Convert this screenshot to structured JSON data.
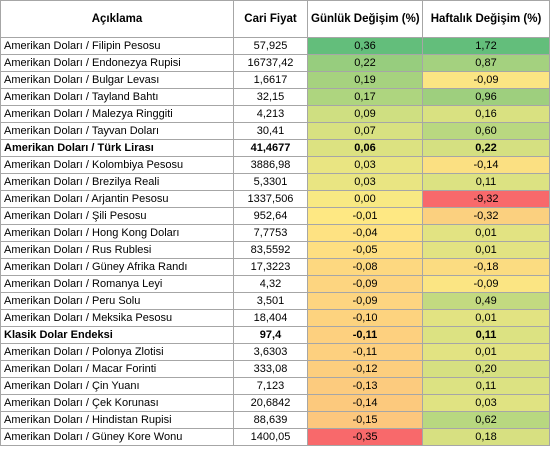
{
  "headers": [
    "Açıklama",
    "Cari Fiyat",
    "Günlük Değişim (%)",
    "Haftalık Değişim (%)"
  ],
  "rows": [
    {
      "name": "Amerikan Doları / Filipin Pesosu",
      "price": "57,925",
      "daily": "0,36",
      "weekly": "1,72",
      "daily_color": "#63be7b",
      "weekly_color": "#63be7b",
      "bold": false
    },
    {
      "name": "Amerikan Doları / Endonezya Rupisi",
      "price": "16737,42",
      "daily": "0,22",
      "weekly": "0,87",
      "daily_color": "#97cd7e",
      "weekly_color": "#a4d17f",
      "bold": false
    },
    {
      "name": "Amerikan Doları / Bulgar Levası",
      "price": "1,6617",
      "daily": "0,19",
      "weekly": "-0,09",
      "daily_color": "#a6d27f",
      "weekly_color": "#fbe583",
      "bold": false
    },
    {
      "name": "Amerikan Doları / Tayland Bahtı",
      "price": "32,15",
      "daily": "0,17",
      "weekly": "0,96",
      "daily_color": "#aed57f",
      "weekly_color": "#9ecf7e",
      "bold": false
    },
    {
      "name": "Amerikan Doları / Malezya Ringgiti",
      "price": "4,213",
      "daily": "0,09",
      "weekly": "0,16",
      "daily_color": "#cfdf81",
      "weekly_color": "#d9e181",
      "bold": false
    },
    {
      "name": "Amerikan Doları /  Tayvan Doları",
      "price": "30,41",
      "daily": "0,07",
      "weekly": "0,60",
      "daily_color": "#d8e181",
      "weekly_color": "#b9d880",
      "bold": false
    },
    {
      "name": "Amerikan Doları / Türk Lirası",
      "price": "41,4677",
      "daily": "0,06",
      "weekly": "0,22",
      "daily_color": "#dce281",
      "weekly_color": "#d5e081",
      "bold": true
    },
    {
      "name": "Amerikan Doları / Kolombiya Pesosu",
      "price": "3886,98",
      "daily": "0,03",
      "weekly": "-0,14",
      "daily_color": "#e9e582",
      "weekly_color": "#fbe082",
      "bold": false
    },
    {
      "name": "Amerikan Doları / Brezilya Reali",
      "price": "5,3301",
      "daily": "0,03",
      "weekly": "0,11",
      "daily_color": "#e9e582",
      "weekly_color": "#dce282",
      "bold": false
    },
    {
      "name": "Amerikan Doları / Arjantin Pesosu",
      "price": "1337,506",
      "daily": "0,00",
      "weekly": "-9,32",
      "daily_color": "#f8e983",
      "weekly_color": "#f8696b",
      "bold": false
    },
    {
      "name": "Amerikan Doları / Şili Pesosu",
      "price": "952,64",
      "daily": "-0,01",
      "weekly": "-0,32",
      "daily_color": "#fee883",
      "weekly_color": "#fbd07f",
      "bold": false
    },
    {
      "name": "Amerikan Doları / Hong Kong Doları",
      "price": "7,7753",
      "daily": "-0,04",
      "weekly": "0,01",
      "daily_color": "#fee282",
      "weekly_color": "#e2e382",
      "bold": false
    },
    {
      "name": "Amerikan Doları / Rus Rublesi",
      "price": "83,5592",
      "daily": "-0,05",
      "weekly": "0,01",
      "daily_color": "#fedf81",
      "weekly_color": "#e2e382",
      "bold": false
    },
    {
      "name": "Amerikan Doları / Güney Afrika Randı",
      "price": "17,3223",
      "daily": "-0,08",
      "weekly": "-0,18",
      "daily_color": "#fdd880",
      "weekly_color": "#fbdc81",
      "bold": false
    },
    {
      "name": "Amerikan Doları / Romanya Leyi",
      "price": "4,32",
      "daily": "-0,09",
      "weekly": "-0,09",
      "daily_color": "#fdd580",
      "weekly_color": "#fbe583",
      "bold": false
    },
    {
      "name": "Amerikan Doları / Peru Solu",
      "price": "3,501",
      "daily": "-0,09",
      "weekly": "0,49",
      "daily_color": "#fdd580",
      "weekly_color": "#c3da80",
      "bold": false
    },
    {
      "name": "Amerikan Doları / Meksika Pesosu",
      "price": "18,404",
      "daily": "-0,10",
      "weekly": "0,01",
      "daily_color": "#fdd37f",
      "weekly_color": "#e2e382",
      "bold": false
    },
    {
      "name": "Klasik Dolar Endeksi",
      "price": "97,4",
      "daily": "-0,11",
      "weekly": "0,11",
      "daily_color": "#fdd07f",
      "weekly_color": "#dce282",
      "bold": true
    },
    {
      "name": "Amerikan Doları / Polonya Zlotisi",
      "price": "3,6303",
      "daily": "-0,11",
      "weekly": "0,01",
      "daily_color": "#fdd07f",
      "weekly_color": "#e2e382",
      "bold": false
    },
    {
      "name": "Amerikan Doları / Macar Forinti",
      "price": "333,08",
      "daily": "-0,12",
      "weekly": "0,20",
      "daily_color": "#fcce7e",
      "weekly_color": "#d6e081",
      "bold": false
    },
    {
      "name": "Amerikan Doları / Çin Yuanı",
      "price": "7,123",
      "daily": "-0,13",
      "weekly": "0,11",
      "daily_color": "#fccb7e",
      "weekly_color": "#dce282",
      "bold": false
    },
    {
      "name": "Amerikan Doları / Çek Korunası",
      "price": "20,6842",
      "daily": "-0,14",
      "weekly": "0,03",
      "daily_color": "#fcc97d",
      "weekly_color": "#e0e382",
      "bold": false
    },
    {
      "name": "Amerikan Doları / Hindistan Rupisi",
      "price": "88,639",
      "daily": "-0,15",
      "weekly": "0,62",
      "daily_color": "#fcc77d",
      "weekly_color": "#b8d880",
      "bold": false
    },
    {
      "name": "Amerikan Doları / Güney Kore Wonu",
      "price": "1400,05",
      "daily": "-0,35",
      "weekly": "0,18",
      "daily_color": "#f8696b",
      "weekly_color": "#d7e081",
      "bold": false
    }
  ]
}
